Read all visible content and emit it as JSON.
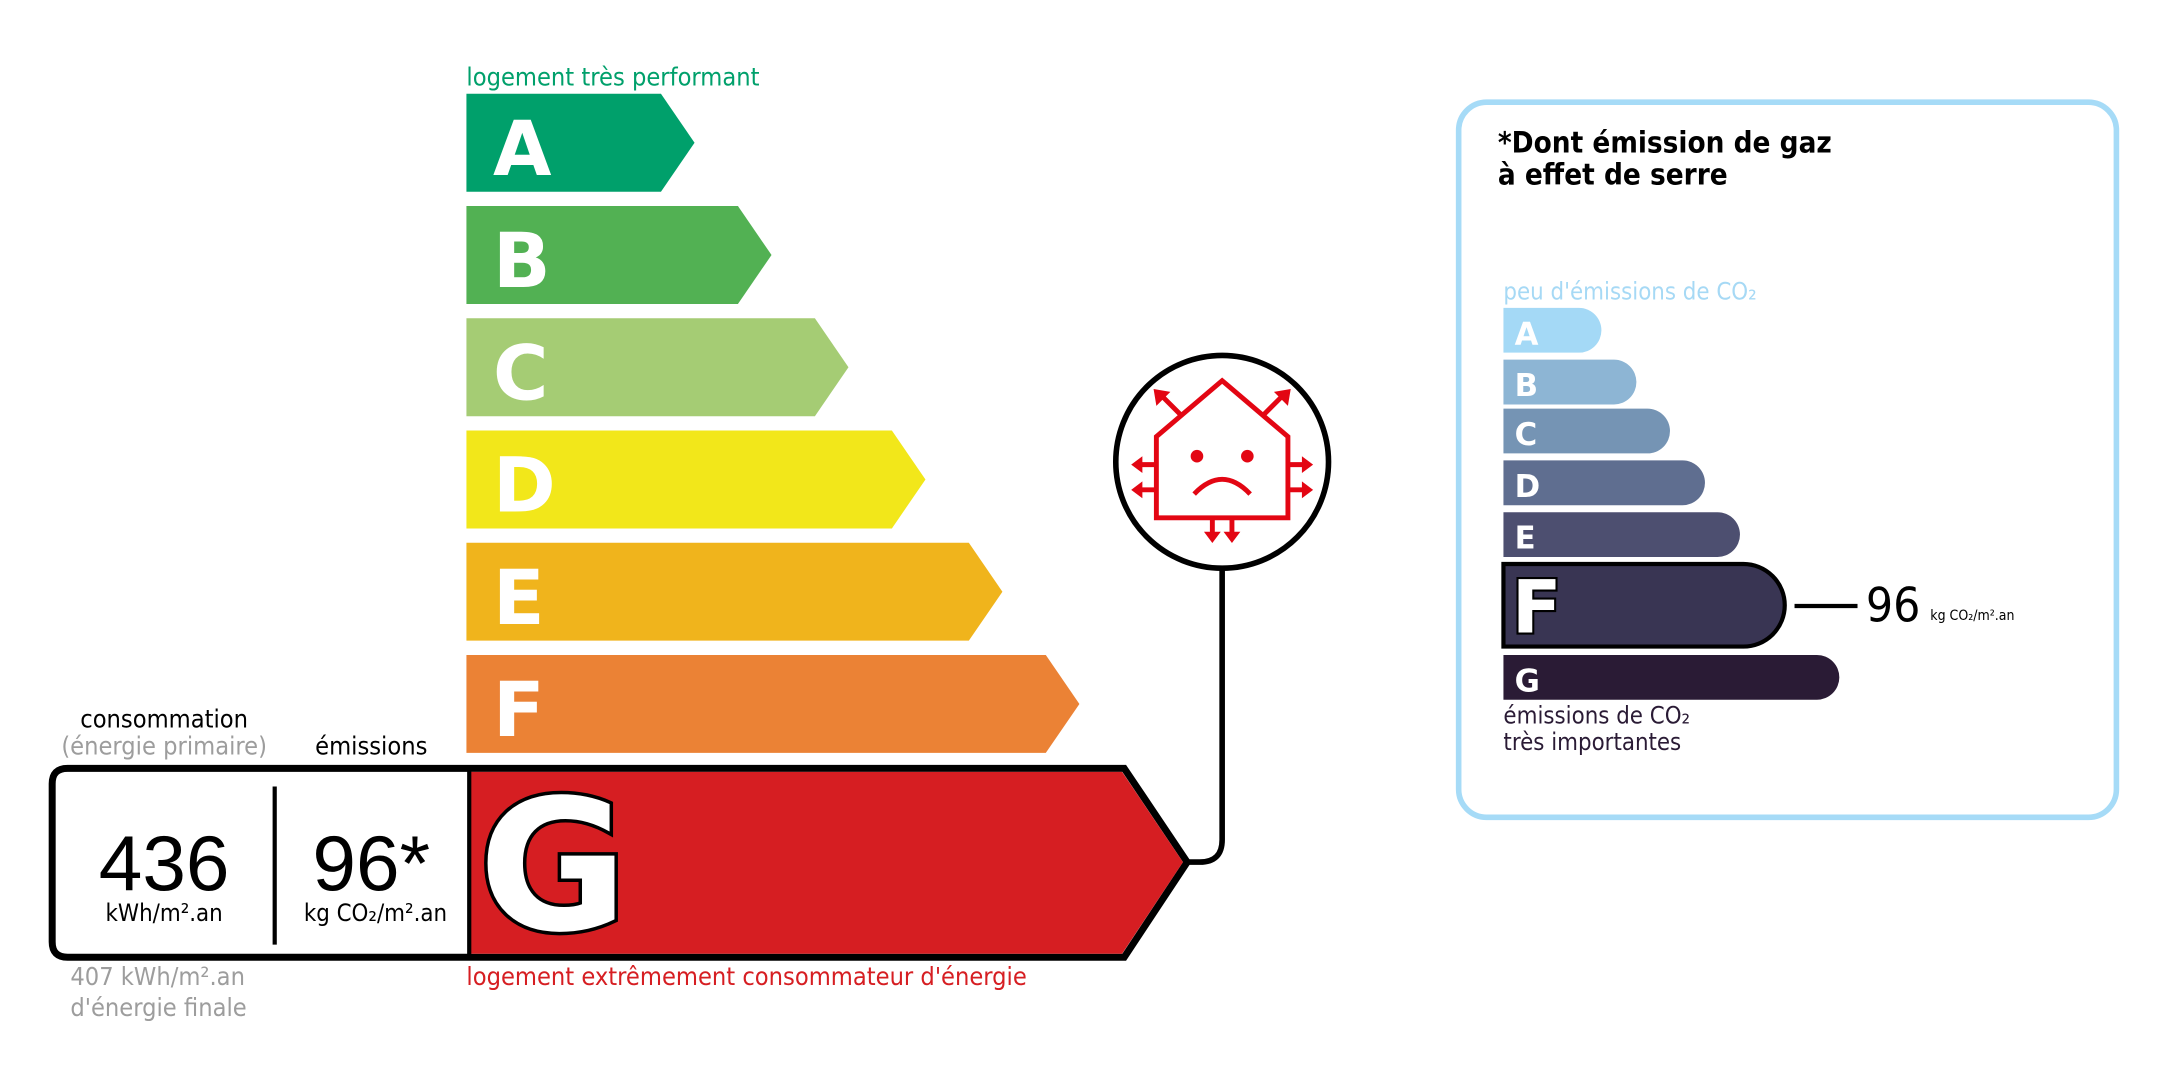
{
  "energy": {
    "top_label": "logement très performant",
    "bottom_label": "logement extrêmement consommateur d'énergie",
    "classes": [
      {
        "letter": "A",
        "color": "#00a06b"
      },
      {
        "letter": "B",
        "color": "#52b153"
      },
      {
        "letter": "C",
        "color": "#a5cc74"
      },
      {
        "letter": "D",
        "color": "#f2e71a"
      },
      {
        "letter": "E",
        "color": "#f0b41c"
      },
      {
        "letter": "F",
        "color": "#eb8235"
      },
      {
        "letter": "G",
        "color": "#d61e22"
      }
    ],
    "current_class": "G",
    "consumption_label": "consommation",
    "consumption_sublabel": "(énergie primaire)",
    "emissions_label": "émissions",
    "consumption_value": "436",
    "consumption_unit": "kWh/m².an",
    "emissions_value": "96*",
    "emissions_unit": "kg CO₂/m².an",
    "final_energy_line1": "407 kWh/m².an",
    "final_energy_line2": "d'énergie finale",
    "icon": "sad-house-icon"
  },
  "ghg": {
    "title_line1": "*Dont émission de gaz",
    "title_line2": "à effet de serre",
    "top_label": "peu d'émissions de CO₂",
    "bottom_line1": "émissions de CO₂",
    "bottom_line2": "très importantes",
    "classes": [
      {
        "letter": "A",
        "color": "#a4d9f6"
      },
      {
        "letter": "B",
        "color": "#8db5d4"
      },
      {
        "letter": "C",
        "color": "#7594b4"
      },
      {
        "letter": "D",
        "color": "#5f6e90"
      },
      {
        "letter": "E",
        "color": "#4d4f70"
      },
      {
        "letter": "F",
        "color": "#393553"
      },
      {
        "letter": "G",
        "color": "#2a1b35"
      }
    ],
    "current_class": "F",
    "value": "96",
    "unit": "kg CO₂/m².an",
    "border_color": "#a6dbf7"
  }
}
